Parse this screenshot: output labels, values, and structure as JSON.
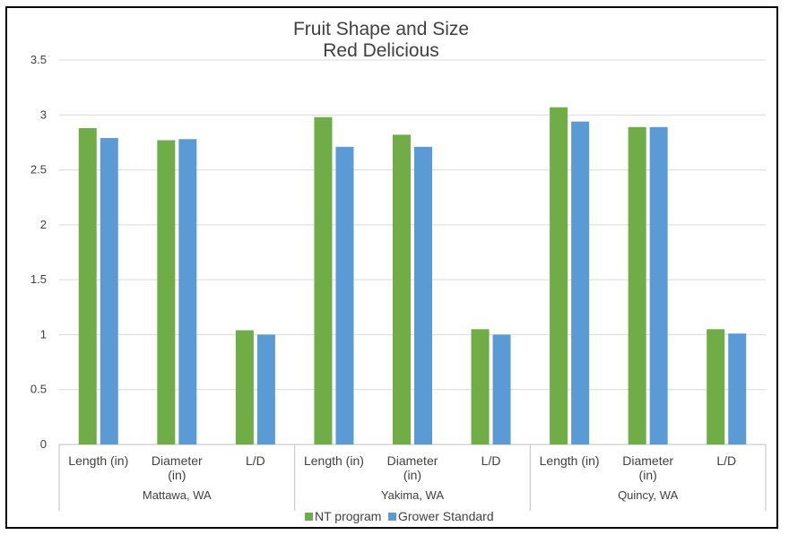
{
  "chart_data": {
    "type": "bar",
    "title": "Fruit Shape and Size",
    "subtitle": "Red Delicious",
    "ylim": [
      0,
      3.5
    ],
    "yticks": [
      "0",
      "0.5",
      "1",
      "1.5",
      "2",
      "2.5",
      "3",
      "3.5"
    ],
    "grid": true,
    "legend_position": "bottom",
    "groups": [
      {
        "name": "Mattawa, WA",
        "categories": [
          [
            "Length (in)"
          ],
          [
            "Diameter",
            "(in)"
          ],
          [
            "L/D"
          ]
        ]
      },
      {
        "name": "Yakima, WA",
        "categories": [
          [
            "Length (in)"
          ],
          [
            "Diameter",
            "(in)"
          ],
          [
            "L/D"
          ]
        ]
      },
      {
        "name": "Quincy, WA",
        "categories": [
          [
            "Length (in)"
          ],
          [
            "Diameter",
            "(in)"
          ],
          [
            "L/D"
          ]
        ]
      }
    ],
    "series": [
      {
        "name": "NT program",
        "color": "#70ad47",
        "values": [
          2.88,
          2.77,
          1.04,
          2.98,
          2.82,
          1.05,
          3.07,
          2.89,
          1.05
        ]
      },
      {
        "name": "Grower Standard",
        "color": "#5b9bd5",
        "values": [
          2.79,
          2.78,
          1.0,
          2.71,
          2.71,
          1.0,
          2.94,
          2.89,
          1.01
        ]
      }
    ]
  }
}
